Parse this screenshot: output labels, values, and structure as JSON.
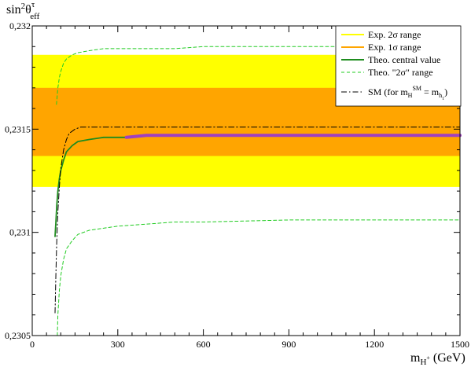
{
  "chart_data": {
    "type": "line",
    "ylabel": "sin²θᵉᶠᶠ (τ)",
    "ylabel_parts": {
      "base": "sin",
      "sup1": "2",
      "theta": "θ",
      "sup2": "τ",
      "sub": "eff"
    },
    "xlabel_parts": {
      "base": "m",
      "sub": "H",
      "subsup": "+",
      "unit": " (GeV)"
    },
    "xlim": [
      0,
      1500
    ],
    "ylim": [
      0.2305,
      0.232
    ],
    "xticks": [
      0,
      300,
      600,
      900,
      1200,
      1500
    ],
    "xtick_labels": [
      "0",
      "300",
      "600",
      "900",
      "1200",
      "1500"
    ],
    "yticks": [
      0.2305,
      0.231,
      0.2315,
      0.232
    ],
    "ytick_labels": [
      "0,2305",
      "0,231",
      "0,2315",
      "0,232"
    ],
    "grid": false,
    "legend_position": "top-right",
    "bands": [
      {
        "name": "Exp. 2σ range",
        "ymin": 0.23122,
        "ymax": 0.23186,
        "color": "#ffff00"
      },
      {
        "name": "Exp. 1σ range",
        "ymin": 0.23137,
        "ymax": 0.2317,
        "color": "#ffa500"
      }
    ],
    "series": [
      {
        "name": "Theo. central value",
        "color": "#1e8c1e",
        "style": "solid",
        "x": [
          80,
          83,
          86,
          90,
          95,
          100,
          110,
          120,
          140,
          160,
          200,
          250,
          300,
          330,
          400,
          600,
          900,
          1200,
          1500
        ],
        "y": [
          0.23098,
          0.23105,
          0.23113,
          0.2312,
          0.23126,
          0.2313,
          0.23135,
          0.23139,
          0.23142,
          0.23144,
          0.23145,
          0.23146,
          0.23146,
          0.23146,
          0.23147,
          0.23147,
          0.23147,
          0.23147,
          0.23147
        ]
      },
      {
        "name": "Theo. \"2σ\" range",
        "color": "#22cc22",
        "style": "dashed",
        "x": [
          85,
          90,
          95,
          100,
          110,
          120,
          140,
          160,
          200,
          250,
          300,
          400,
          500,
          600,
          900,
          1200,
          1500
        ],
        "y": [
          0.23162,
          0.2317,
          0.23175,
          0.23178,
          0.23182,
          0.23184,
          0.23186,
          0.23187,
          0.23188,
          0.23189,
          0.23189,
          0.23189,
          0.23189,
          0.2319,
          0.2319,
          0.2319,
          0.2319
        ]
      },
      {
        "name": "",
        "color": "#22cc22",
        "style": "dashed",
        "x": [
          88,
          90,
          95,
          100,
          110,
          120,
          140,
          160,
          200,
          250,
          300,
          400,
          500,
          600,
          900,
          1200,
          1500
        ],
        "y": [
          0.2305,
          0.2306,
          0.23072,
          0.23079,
          0.23087,
          0.23092,
          0.23096,
          0.23099,
          0.23101,
          0.23102,
          0.23103,
          0.23104,
          0.23105,
          0.23105,
          0.23106,
          0.23106,
          0.23106
        ]
      },
      {
        "name": "SM (for m_H^SM = m_h)",
        "color": "#000000",
        "style": "dashdot",
        "x": [
          80,
          83,
          86,
          90,
          95,
          100,
          110,
          120,
          130,
          140,
          150,
          170,
          200,
          300,
          600,
          900,
          1200,
          1500
        ],
        "y": [
          0.23061,
          0.2308,
          0.23096,
          0.2311,
          0.23122,
          0.23131,
          0.2314,
          0.23145,
          0.23148,
          0.23149,
          0.2315,
          0.23151,
          0.23151,
          0.23151,
          0.23151,
          0.23151,
          0.23151,
          0.23151
        ]
      },
      {
        "name": "",
        "color": "#a040c0",
        "style": "thick",
        "x": [
          330,
          400,
          600,
          900,
          1200,
          1500
        ],
        "y": [
          0.23146,
          0.23147,
          0.23147,
          0.23147,
          0.23147,
          0.23147
        ]
      }
    ],
    "legend": [
      {
        "label": "Exp. 2σ range",
        "kind": "line",
        "color": "#ffff00",
        "style": "solid"
      },
      {
        "label": "Exp. 1σ range",
        "kind": "line",
        "color": "#ffa500",
        "style": "solid"
      },
      {
        "label": "Theo. central value",
        "kind": "line",
        "color": "#1e8c1e",
        "style": "solid"
      },
      {
        "label": "Theo. \"2σ\" range",
        "kind": "line",
        "color": "#22cc22",
        "style": "dashed"
      },
      {
        "label_parts": {
          "pre": "SM (for m",
          "sub1": "H",
          "sup1": "SM",
          "mid": " = m",
          "sub2": "h",
          "sub2b": "1",
          "post": ")"
        },
        "kind": "line",
        "color": "#000000",
        "style": "dashdot"
      }
    ]
  }
}
